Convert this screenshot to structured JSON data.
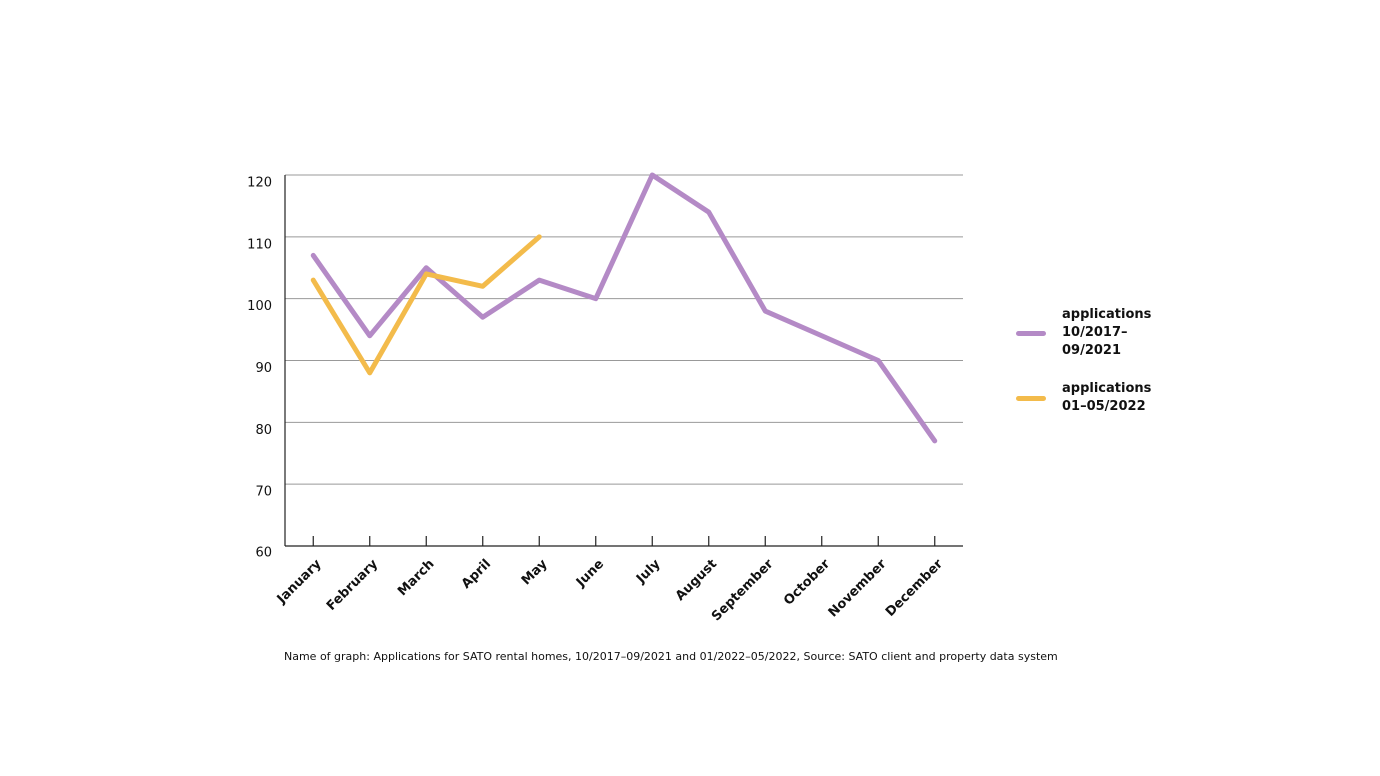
{
  "chart_data": {
    "type": "line",
    "categories": [
      "January",
      "February",
      "March",
      "April",
      "May",
      "June",
      "July",
      "August",
      "September",
      "October",
      "November",
      "December"
    ],
    "series": [
      {
        "name": "applications 10/2017–09/2021",
        "color": "#b48ac6",
        "values": [
          107,
          94,
          105,
          97,
          103,
          100,
          120,
          114,
          98,
          94,
          90,
          77
        ]
      },
      {
        "name": "applications 01–05/2022",
        "color": "#f3bb4b",
        "values": [
          103,
          88,
          104,
          102,
          110,
          null,
          null,
          null,
          null,
          null,
          null,
          null
        ]
      }
    ],
    "ylim": [
      60,
      120
    ],
    "yticks": [
      60,
      70,
      80,
      90,
      100,
      110,
      120
    ],
    "grid": true,
    "legend": "right",
    "caption": "Name of graph: Applications for SATO rental homes, 10/2017–09/2021 and 01/2022–05/2022, Source: SATO client and property data system"
  }
}
